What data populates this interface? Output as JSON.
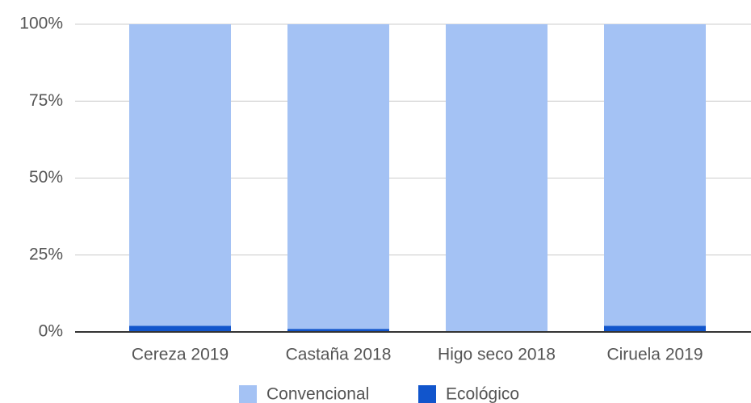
{
  "chart_data": {
    "type": "bar",
    "stacked": true,
    "categories": [
      "Cereza 2019",
      "Castaña 2018",
      "Higo seco 2018",
      "Ciruela 2019"
    ],
    "series": [
      {
        "name": "Convencional",
        "color": "#a4c2f4",
        "values": [
          98,
          99,
          100,
          98
        ]
      },
      {
        "name": "Ecológico",
        "color": "#1155cc",
        "values": [
          2,
          1,
          0,
          2
        ]
      }
    ],
    "ylim": [
      0,
      100
    ],
    "yticks": [
      {
        "value": 0,
        "label": "0%"
      },
      {
        "value": 25,
        "label": "25%"
      },
      {
        "value": 50,
        "label": "50%"
      },
      {
        "value": 75,
        "label": "75%"
      },
      {
        "value": 100,
        "label": "100%"
      }
    ],
    "grid": true,
    "legend": "bottom"
  }
}
